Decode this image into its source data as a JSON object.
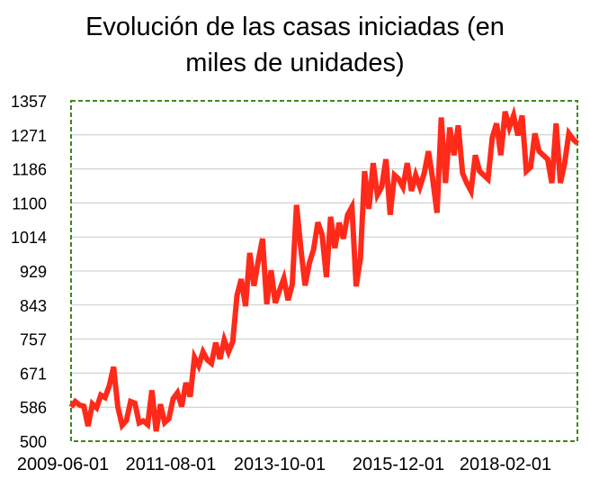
{
  "chart_data": {
    "type": "line",
    "title": [
      "Evolución de las casas iniciadas (en",
      "miles de unidades)"
    ],
    "xlabel": "",
    "ylabel": "",
    "x_tick_labels": [
      "2009-06-01",
      "2011-08-01",
      "2013-10-01",
      "2015-12-01",
      "2018-02-01"
    ],
    "y_tick_labels": [
      "500",
      "586",
      "671",
      "757",
      "843",
      "929",
      "1014",
      "1100",
      "1186",
      "1271",
      "1357"
    ],
    "ylim": [
      500,
      1357
    ],
    "x_start": "2009-06-01",
    "x_end": "2019-08-01",
    "grid": true,
    "line_color": "#ff2a1a",
    "frame_color": "#3a8a1a",
    "series": [
      {
        "values": [
          586,
          600,
          591,
          588,
          538,
          594,
          584,
          616,
          610,
          640,
          687,
          586,
          540,
          552,
          600,
          596,
          546,
          551,
          542,
          628,
          525,
          593,
          547,
          557,
          607,
          622,
          587,
          647,
          612,
          711,
          690,
          725,
          705,
          696,
          748,
          707,
          755,
          725,
          751,
          867,
          908,
          840,
          974,
          891,
          955,
          1010,
          845,
          930,
          848,
          880,
          910,
          855,
          895,
          1095,
          985,
          892,
          948,
          983,
          1051,
          1020,
          913,
          1065,
          986,
          1050,
          1010,
          1070,
          1090,
          890,
          960,
          1180,
          1085,
          1200,
          1120,
          1140,
          1210,
          1070,
          1170,
          1160,
          1140,
          1200,
          1130,
          1170,
          1140,
          1175,
          1230,
          1160,
          1075,
          1315,
          1150,
          1290,
          1220,
          1295,
          1175,
          1150,
          1130,
          1220,
          1180,
          1170,
          1160,
          1265,
          1300,
          1220,
          1330,
          1290,
          1320,
          1270,
          1320,
          1180,
          1190,
          1275,
          1230,
          1220,
          1210,
          1150,
          1300,
          1150,
          1200,
          1275,
          1260,
          1250
        ]
      }
    ]
  }
}
